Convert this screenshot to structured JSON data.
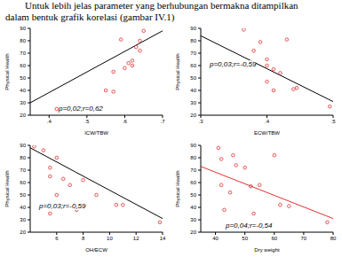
{
  "text": [
    "Untuk lebih jelas parameter yang berhubungan bermakna ditampilkan",
    "dalam bentuk grafik korelasi (gambar IV.1)"
  ],
  "chart_data": [
    {
      "type": "scatter",
      "xlabel": "ICW/TBW",
      "ylabel": "Physical Health",
      "annotation": "p=0,02;r=0,62",
      "xlim": [
        0.35,
        0.7
      ],
      "xticks": [
        {
          "value": 0.4,
          "label": ".4"
        },
        {
          "value": 0.5,
          "label": ".5"
        },
        {
          "value": 0.6,
          "label": ".6"
        },
        {
          "value": 0.7,
          "label": ".7"
        }
      ],
      "ylim": [
        20,
        90
      ],
      "yticks": [
        20,
        30,
        40,
        50,
        60,
        70,
        80,
        90
      ],
      "x": [
        0.42,
        0.55,
        0.57,
        0.57,
        0.6,
        0.61,
        0.62,
        0.62,
        0.63,
        0.64,
        0.64,
        0.59,
        0.65
      ],
      "values": [
        25,
        40,
        39,
        55,
        58,
        62,
        64,
        60,
        75,
        72,
        80,
        81,
        88
      ],
      "color": "#e03030",
      "marker": "circle",
      "trend": {
        "x": [
          0.35,
          0.7
        ],
        "values": [
          30,
          88
        ],
        "color": "#000000"
      }
    },
    {
      "type": "scatter",
      "xlabel": "ECW/TBW",
      "ylabel": "Physical Health",
      "annotation": "p=0,03;r=-0,59",
      "xlim": [
        0.3,
        0.5
      ],
      "xticks": [
        {
          "value": 0.3,
          "label": ".3"
        },
        {
          "value": 0.4,
          "label": ".4"
        },
        {
          "value": 0.5,
          "label": ".5"
        }
      ],
      "ylim": [
        20,
        90
      ],
      "yticks": [
        20,
        30,
        40,
        50,
        60,
        70,
        80,
        90
      ],
      "x": [
        0.365,
        0.39,
        0.38,
        0.4,
        0.4,
        0.41,
        0.4,
        0.41,
        0.43,
        0.44,
        0.445,
        0.495,
        0.42
      ],
      "values": [
        89,
        79,
        72,
        65,
        60,
        57,
        47,
        40,
        81,
        41,
        42,
        27,
        54
      ],
      "color": "#e03030",
      "marker": "circle",
      "trend": {
        "x": [
          0.3,
          0.5
        ],
        "values": [
          84,
          31
        ],
        "color": "#000000"
      }
    },
    {
      "type": "scatter",
      "xlabel": "OH/ECW",
      "ylabel": "Physical Health",
      "annotation": "p=0,03;r=-0,59",
      "xlim": [
        4,
        14
      ],
      "xticks": [
        6,
        8,
        10,
        12,
        14
      ],
      "ylim": [
        20,
        90
      ],
      "yticks": [
        20,
        30,
        40,
        50,
        60,
        70,
        80,
        90
      ],
      "x": [
        4.3,
        5,
        6,
        5.5,
        5.5,
        6.5,
        8,
        7,
        6,
        9,
        7.5,
        5.5,
        10.5,
        11,
        13.8
      ],
      "values": [
        89,
        86,
        80,
        72,
        65,
        63,
        62,
        58,
        50,
        50,
        38,
        35,
        42,
        42,
        28
      ],
      "color": "#e03030",
      "marker": "circle",
      "trend": {
        "x": [
          4,
          14
        ],
        "values": [
          88,
          31
        ],
        "color": "#000000"
      }
    },
    {
      "type": "scatter",
      "xlabel": "Dry weight",
      "ylabel": "Physical Health",
      "annotation": "p=0,04;r=-0,54",
      "xlim": [
        35,
        80
      ],
      "xticks": [
        40,
        50,
        60,
        70,
        80
      ],
      "ylim": [
        20,
        90
      ],
      "yticks": [
        20,
        30,
        40,
        50,
        60,
        70,
        80,
        90
      ],
      "x": [
        41,
        42,
        46,
        47,
        50,
        42,
        45,
        52,
        55,
        53,
        43,
        60,
        62,
        65,
        78
      ],
      "values": [
        88,
        79,
        82,
        74,
        72,
        58,
        52,
        57,
        58,
        35,
        38,
        82,
        42,
        41,
        28
      ],
      "color": "#e03030",
      "marker": "circle",
      "trend": {
        "x": [
          35,
          80
        ],
        "values": [
          73,
          31
        ],
        "color": "#e03030"
      }
    }
  ]
}
